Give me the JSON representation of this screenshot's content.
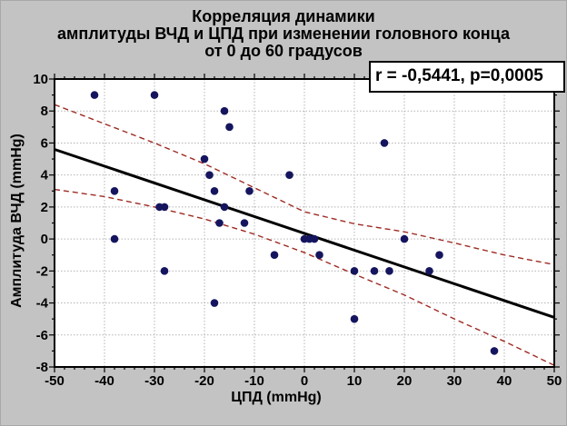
{
  "title": {
    "line1": "Корреляция динамики",
    "line2": "амплитуды ВЧД и ЦПД при изменении головного конца",
    "line3": "от 0 до 60 градусов"
  },
  "annotation": {
    "text": "r = -0,5441, p=0,0005"
  },
  "chart_data": {
    "type": "scatter",
    "xlabel": "ЦПД (mmHg)",
    "ylabel": "Амплитуда ВЧД (mmHg)",
    "xlim": [
      -50,
      50
    ],
    "ylim": [
      -8,
      10
    ],
    "x_major_ticks": [
      -50,
      -40,
      -30,
      -20,
      -10,
      0,
      10,
      20,
      30,
      40,
      50
    ],
    "x_minor_step": 2,
    "y_major_ticks": [
      -8,
      -6,
      -4,
      -2,
      0,
      2,
      4,
      6,
      8,
      10
    ],
    "y_minor_step": 1,
    "grid": true,
    "legend": "none",
    "stats_label": "r = -0,5441, p=0,0005",
    "points": [
      [
        -42,
        9
      ],
      [
        -30,
        9
      ],
      [
        -16,
        8
      ],
      [
        -15,
        7
      ],
      [
        16,
        6
      ],
      [
        -20,
        5
      ],
      [
        -19,
        4
      ],
      [
        -3,
        4
      ],
      [
        -38,
        3
      ],
      [
        -18,
        3
      ],
      [
        -11,
        3
      ],
      [
        -29,
        2
      ],
      [
        -28,
        2
      ],
      [
        -16,
        2
      ],
      [
        -17,
        1
      ],
      [
        -12,
        1
      ],
      [
        -38,
        0
      ],
      [
        0,
        0
      ],
      [
        1,
        0
      ],
      [
        2,
        0
      ],
      [
        20,
        0
      ],
      [
        -6,
        -1
      ],
      [
        3,
        -1
      ],
      [
        27,
        -1
      ],
      [
        -28,
        -2
      ],
      [
        10,
        -2
      ],
      [
        14,
        -2
      ],
      [
        17,
        -2
      ],
      [
        25,
        -2
      ],
      [
        -18,
        -4
      ],
      [
        10,
        -5
      ],
      [
        38,
        -7
      ]
    ],
    "regression_line": [
      [
        -50,
        5.6
      ],
      [
        50,
        -4.9
      ]
    ],
    "ci_upper": [
      [
        -50,
        8.4
      ],
      [
        -40,
        7.2
      ],
      [
        -30,
        6.0
      ],
      [
        -20,
        4.7
      ],
      [
        -10,
        3.2
      ],
      [
        0,
        1.7
      ],
      [
        10,
        0.95
      ],
      [
        20,
        0.45
      ],
      [
        30,
        -0.25
      ],
      [
        40,
        -1.0
      ],
      [
        50,
        -1.6
      ]
    ],
    "ci_lower": [
      [
        -50,
        3.1
      ],
      [
        -40,
        2.65
      ],
      [
        -30,
        2.0
      ],
      [
        -20,
        1.25
      ],
      [
        -10,
        0.3
      ],
      [
        0,
        -0.85
      ],
      [
        10,
        -2.2
      ],
      [
        20,
        -3.5
      ],
      [
        30,
        -5.0
      ],
      [
        40,
        -6.4
      ],
      [
        50,
        -7.9
      ]
    ],
    "colors": {
      "background": "#c3c3c3",
      "plot_background": "#ffffff",
      "grid": "#b4b4b4",
      "point": "#15155f",
      "regression": "#000000",
      "confidence_band": "#9e2b23",
      "border": "#000000"
    }
  }
}
